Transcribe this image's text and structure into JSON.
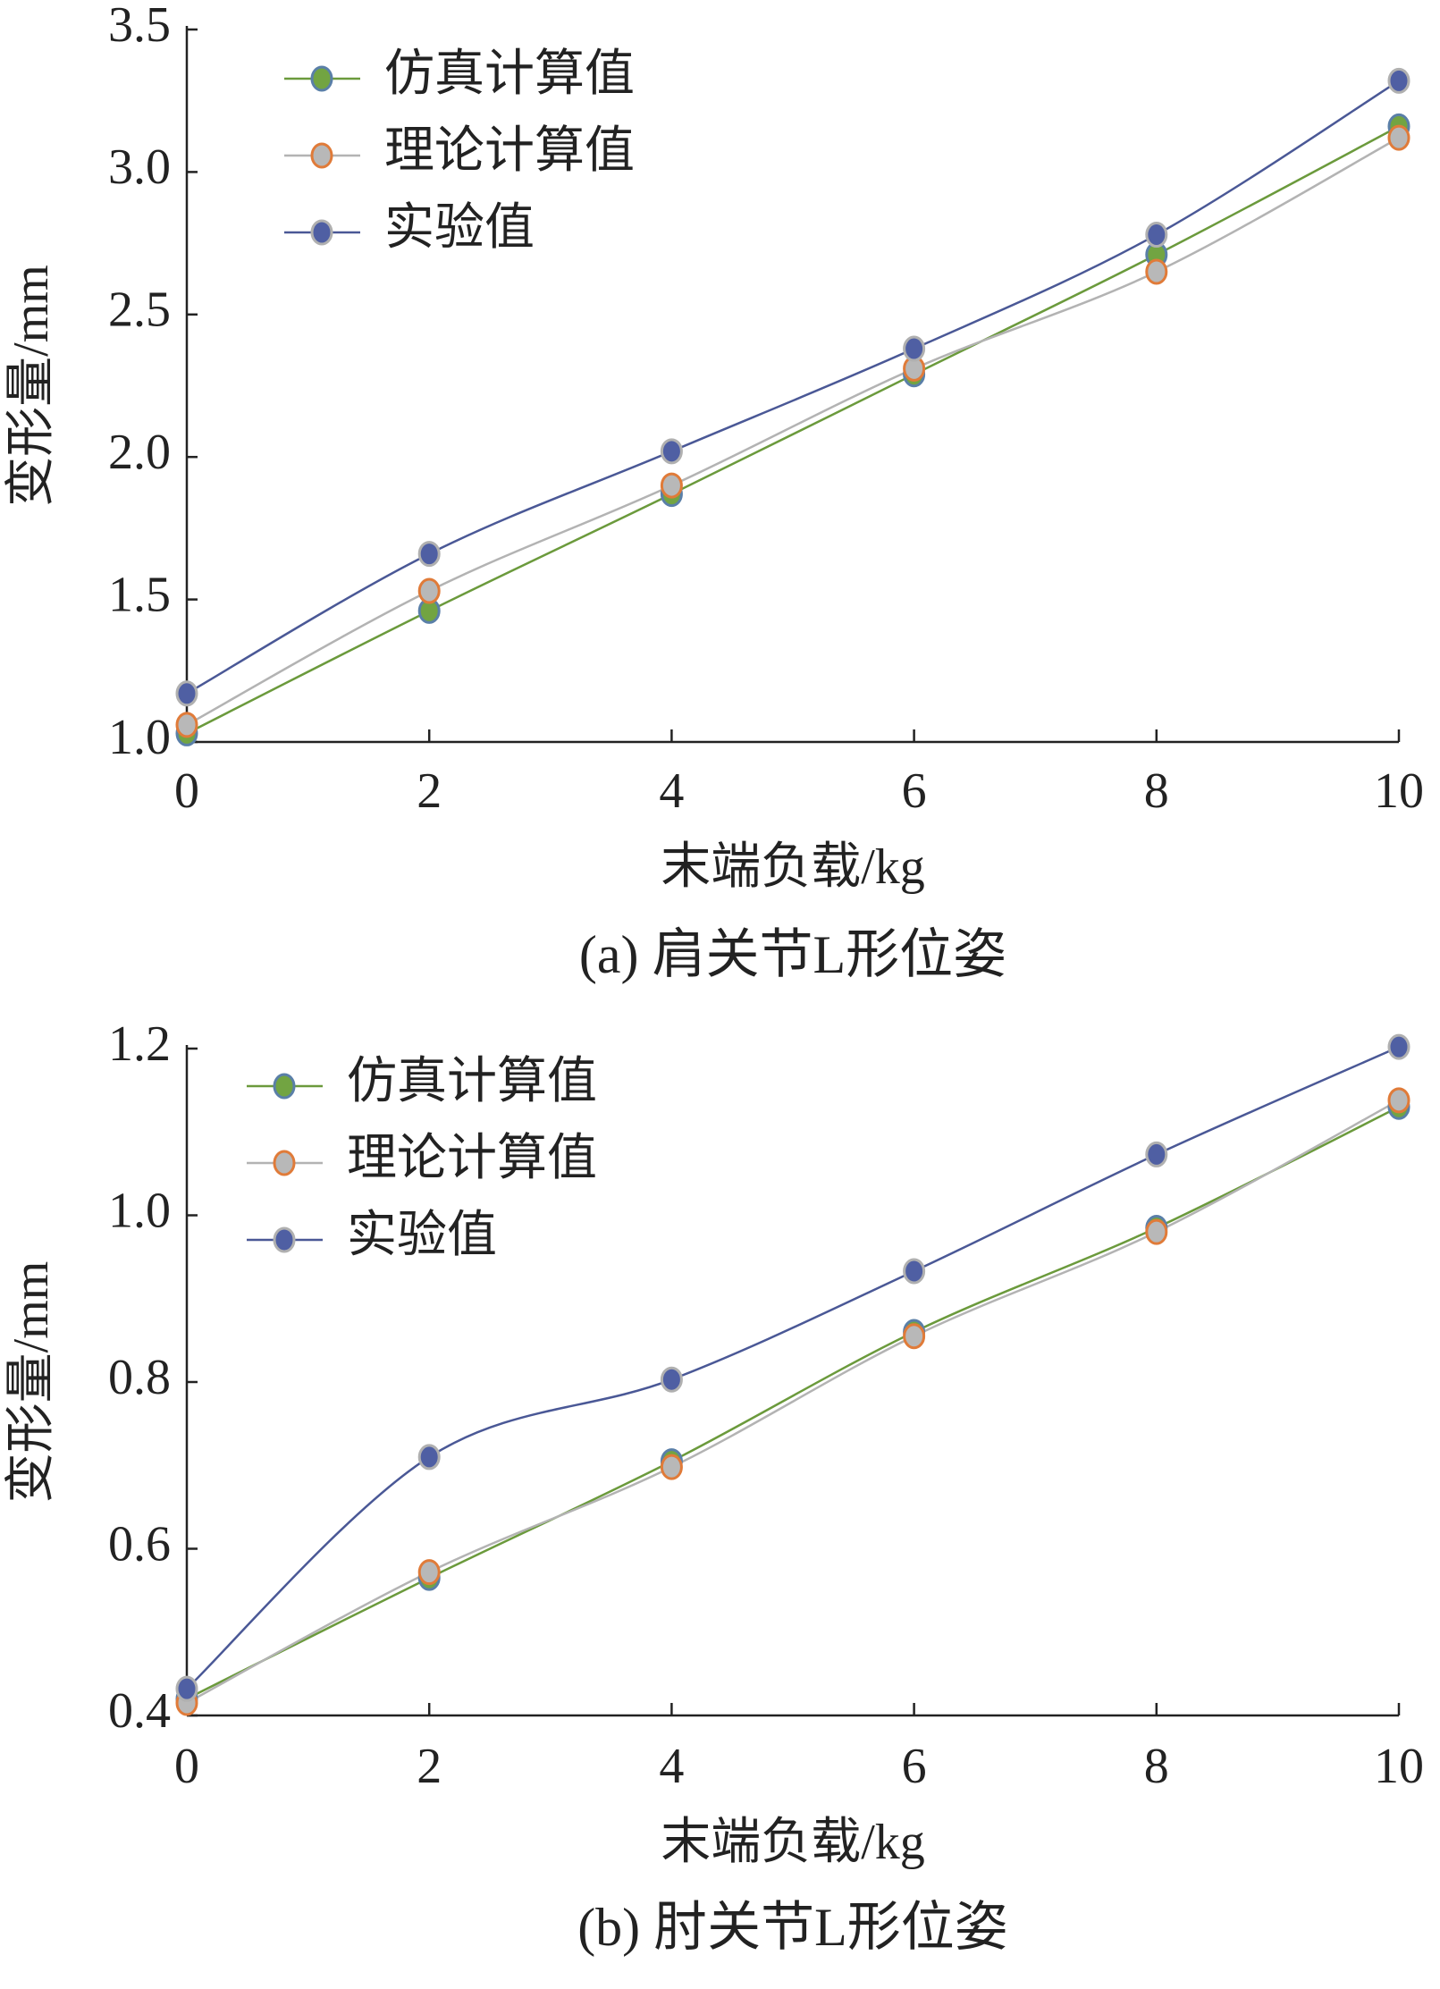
{
  "chart_data": [
    {
      "type": "line",
      "title": "(a) 肩关节L形位姿",
      "x_label": "末端负载/kg",
      "y_label": "变形量/mm",
      "x": [
        0,
        2,
        4,
        6,
        8,
        10
      ],
      "xlim": [
        0,
        10
      ],
      "xticks": [
        0,
        2,
        4,
        6,
        8,
        10
      ],
      "ylim": [
        1,
        3.5
      ],
      "yticks": [
        {
          "value": 1,
          "label": "1.0"
        },
        1.5,
        {
          "value": 2,
          "label": "2.0"
        },
        2.5,
        {
          "value": 3,
          "label": "3.0"
        },
        3.5
      ],
      "legend": "upper left",
      "smooth": true,
      "series": [
        {
          "name": "仿真计算值",
          "color": "#6b9a3c",
          "marker_color": "#72a442",
          "marker_edge": "#5a7fa8",
          "values": [
            1.03,
            1.46,
            1.87,
            2.29,
            2.71,
            3.16
          ]
        },
        {
          "name": "理论计算值",
          "color": "#b3b3b3",
          "marker_color": "#b8b8b8",
          "marker_edge": "#e07b39",
          "values": [
            1.06,
            1.53,
            1.9,
            2.31,
            2.65,
            3.12
          ]
        },
        {
          "name": "实验值",
          "color": "#4a5896",
          "marker_color": "#4f5fa3",
          "marker_edge": "#b0b0b0",
          "values": [
            1.17,
            1.66,
            2.02,
            2.38,
            2.78,
            3.32
          ]
        }
      ]
    },
    {
      "type": "line",
      "title": "(b) 肘关节L形位姿",
      "x_label": "末端负载/kg",
      "y_label": "变形量/mm",
      "x": [
        0,
        2,
        4,
        6,
        8,
        10
      ],
      "xlim": [
        0,
        10
      ],
      "xticks": [
        0,
        2,
        4,
        6,
        8,
        10
      ],
      "ylim": [
        0.4,
        1.2
      ],
      "yticks": [
        0.4,
        0.6,
        0.8,
        {
          "value": 1,
          "label": "1.0"
        },
        1.2
      ],
      "legend": "upper left",
      "smooth": true,
      "series": [
        {
          "name": "仿真计算值",
          "color": "#6b9a3c",
          "marker_color": "#72a442",
          "marker_edge": "#5a7fa8",
          "values": [
            0.42,
            0.565,
            0.705,
            0.86,
            0.985,
            1.13
          ]
        },
        {
          "name": "理论计算值",
          "color": "#b3b3b3",
          "marker_color": "#b8b8b8",
          "marker_edge": "#e07b39",
          "values": [
            0.415,
            0.572,
            0.698,
            0.855,
            0.98,
            1.138
          ]
        },
        {
          "name": "实验值",
          "color": "#4a5896",
          "marker_color": "#4f5fa3",
          "marker_edge": "#b0b0b0",
          "values": [
            0.432,
            0.71,
            0.803,
            0.933,
            1.073,
            1.202
          ]
        }
      ]
    }
  ]
}
